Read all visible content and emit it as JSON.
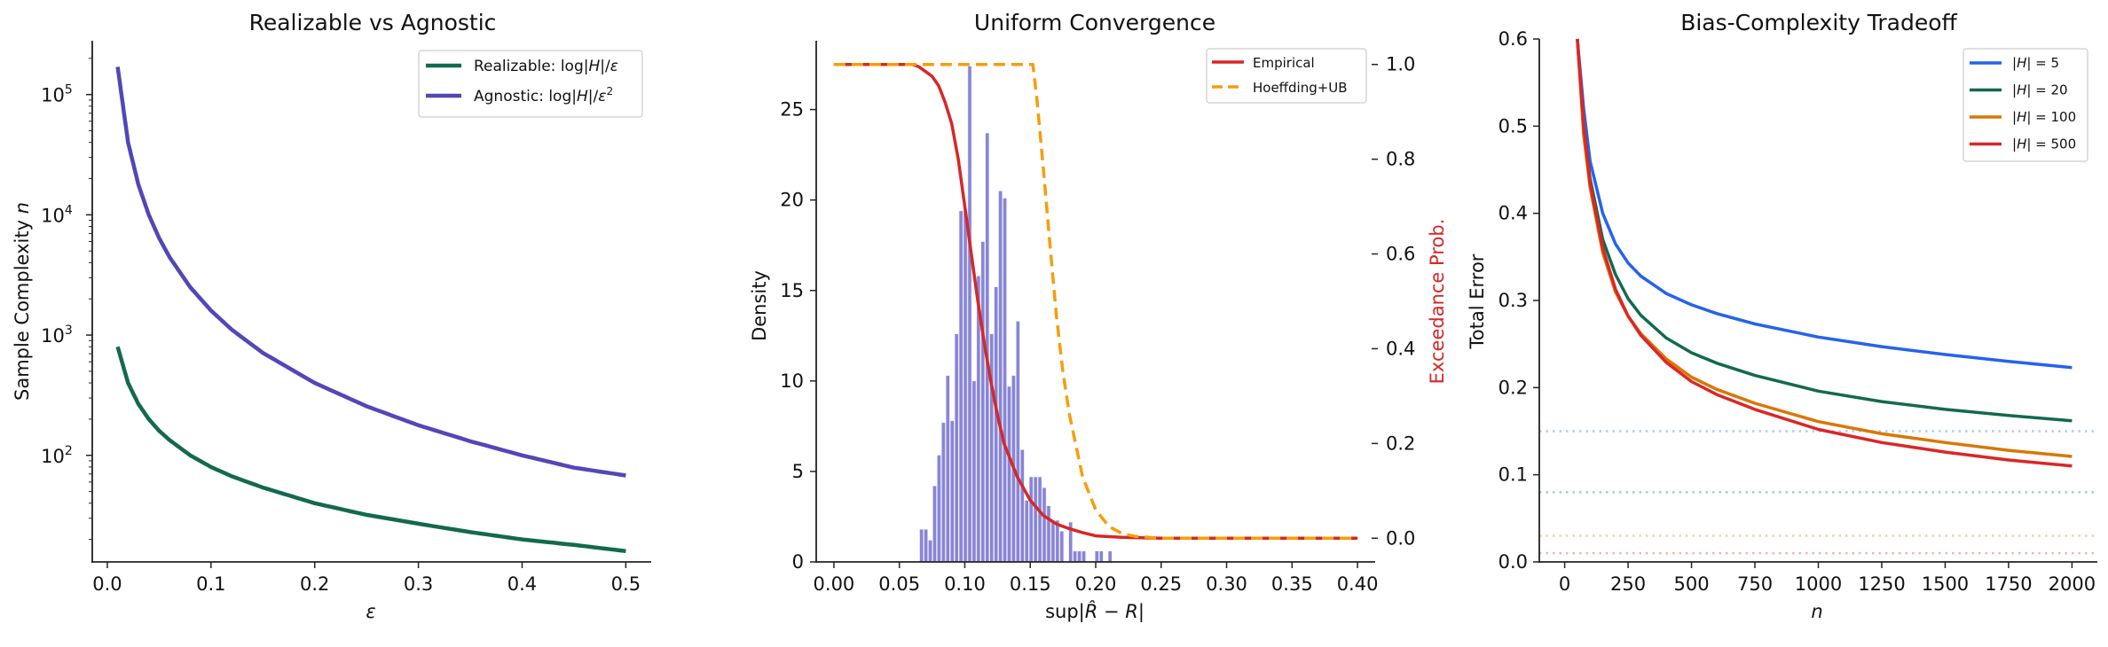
{
  "chart_data": [
    {
      "type": "line",
      "title": "Realizable vs Agnostic",
      "xlabel": "ε",
      "ylabel": "Sample Complexity n",
      "yscale": "log",
      "xlim": [
        -0.0145,
        0.5245
      ],
      "ylim": [
        13,
        280000
      ],
      "xticks": [
        "0.0",
        "0.1",
        "0.2",
        "0.3",
        "0.4",
        "0.5"
      ],
      "yticks": [
        "10^2",
        "10^3",
        "10^4",
        "10^5"
      ],
      "legend_position": "upper right",
      "grid": false,
      "x": [
        0.01,
        0.02,
        0.03,
        0.04,
        0.05,
        0.06,
        0.08,
        0.1,
        0.12,
        0.15,
        0.2,
        0.25,
        0.3,
        0.35,
        0.4,
        0.45,
        0.5
      ],
      "series": [
        {
          "name": "Realizable: log|H|/ε",
          "color": "#13694f",
          "values": [
            800,
            400,
            267,
            200,
            160,
            134,
            100,
            80,
            67,
            54,
            40,
            32,
            27,
            23,
            20,
            18,
            16
          ]
        },
        {
          "name": "Agnostic: log|H|/ε²",
          "color": "#5346b8",
          "values": [
            170000,
            40000,
            17800,
            10000,
            6400,
            4450,
            2500,
            1600,
            1110,
            711,
            400,
            256,
            178,
            131,
            100,
            79,
            68
          ]
        }
      ]
    },
    {
      "type": "bar+line",
      "title": "Uniform Convergence",
      "xlabel": "sup|R̂ − R|",
      "ylabel": "Density",
      "ylabel_right": "Exceedance Prob.",
      "ylabel_right_color": "#d62728",
      "xlim": [
        -0.0135,
        0.4135
      ],
      "ylim": [
        0,
        28.8
      ],
      "ylim_right": [
        -0.05,
        1.05
      ],
      "xticks": [
        "0.00",
        "0.05",
        "0.10",
        "0.15",
        "0.20",
        "0.25",
        "0.30",
        "0.35",
        "0.40"
      ],
      "yticks": [
        "0",
        "5",
        "10",
        "15",
        "20",
        "25"
      ],
      "yticks_right": [
        "0.0",
        "0.2",
        "0.4",
        "0.6",
        "0.8",
        "1.0"
      ],
      "legend_position": "upper right",
      "grid": false,
      "histogram": {
        "color": "#8885d6",
        "bin_start": 0.0655,
        "bin_width": 0.00335,
        "densities": [
          1.8,
          1.8,
          1.2,
          4.2,
          5.9,
          7.7,
          10.3,
          7.8,
          12.6,
          19.4,
          19.4,
          27.4,
          10.0,
          15.8,
          17.7,
          23.7,
          12.6,
          15.2,
          20.5,
          20.1,
          9.7,
          10.3,
          13.3,
          6.2,
          3.4,
          4.7,
          4.7,
          4.7,
          4.1,
          3.1,
          2.3,
          2.3,
          1.7,
          0.0,
          2.2,
          0.6,
          0.6,
          0.6,
          0.0,
          0.0,
          0.6,
          0.6,
          0.0,
          0.6
        ]
      },
      "series": [
        {
          "name": "Empirical",
          "color": "#d62728",
          "style": "solid",
          "x": [
            0.0,
            0.06,
            0.065,
            0.07,
            0.075,
            0.08,
            0.085,
            0.09,
            0.095,
            0.1,
            0.105,
            0.11,
            0.115,
            0.12,
            0.125,
            0.13,
            0.14,
            0.15,
            0.16,
            0.17,
            0.18,
            0.19,
            0.2,
            0.22,
            0.25,
            0.4
          ],
          "values": [
            1.0,
            1.0,
            0.995,
            0.985,
            0.975,
            0.955,
            0.92,
            0.875,
            0.8,
            0.7,
            0.6,
            0.5,
            0.41,
            0.33,
            0.26,
            0.2,
            0.13,
            0.08,
            0.048,
            0.03,
            0.02,
            0.012,
            0.005,
            0.002,
            0.0,
            0.0
          ]
        },
        {
          "name": "Hoeffding+UB",
          "color": "#f59e0b",
          "style": "dashed",
          "x": [
            0.0,
            0.152,
            0.155,
            0.16,
            0.165,
            0.17,
            0.175,
            0.18,
            0.19,
            0.2,
            0.21,
            0.22,
            0.23,
            0.25,
            0.4
          ],
          "values": [
            1.0,
            1.0,
            0.93,
            0.78,
            0.62,
            0.47,
            0.35,
            0.26,
            0.13,
            0.06,
            0.025,
            0.01,
            0.004,
            0.0,
            0.0
          ]
        }
      ]
    },
    {
      "type": "line",
      "title": "Bias-Complexity Tradeoff",
      "xlabel": "n",
      "ylabel": "Total Error",
      "xlim": [
        -100,
        2100
      ],
      "ylim": [
        0.0,
        0.6
      ],
      "xticks": [
        "0",
        "250",
        "500",
        "750",
        "1000",
        "1250",
        "1500",
        "1750",
        "2000"
      ],
      "yticks": [
        "0.0",
        "0.1",
        "0.2",
        "0.3",
        "0.4",
        "0.5",
        "0.6"
      ],
      "legend_position": "upper right",
      "grid": false,
      "x": [
        50,
        75,
        100,
        150,
        200,
        250,
        300,
        400,
        500,
        600,
        750,
        1000,
        1250,
        1500,
        1750,
        2000
      ],
      "series": [
        {
          "name": "|H| = 5",
          "color": "#2563eb",
          "bias": 0.15,
          "values": [
            0.6,
            0.52,
            0.46,
            0.4,
            0.365,
            0.343,
            0.328,
            0.308,
            0.295,
            0.285,
            0.273,
            0.258,
            0.247,
            0.238,
            0.23,
            0.223
          ]
        },
        {
          "name": "|H| = 20",
          "color": "#13694f",
          "bias": 0.08,
          "values": [
            0.6,
            0.5,
            0.44,
            0.37,
            0.33,
            0.302,
            0.283,
            0.257,
            0.24,
            0.228,
            0.214,
            0.196,
            0.184,
            0.175,
            0.168,
            0.162
          ]
        },
        {
          "name": "|H| = 100",
          "color": "#d97706",
          "bias": 0.03,
          "values": [
            0.6,
            0.49,
            0.43,
            0.355,
            0.31,
            0.282,
            0.262,
            0.233,
            0.212,
            0.198,
            0.182,
            0.161,
            0.147,
            0.137,
            0.128,
            0.121
          ]
        },
        {
          "name": "|H| = 500",
          "color": "#dc2626",
          "bias": 0.01,
          "values": [
            0.62,
            0.5,
            0.435,
            0.36,
            0.313,
            0.282,
            0.26,
            0.229,
            0.207,
            0.192,
            0.175,
            0.152,
            0.137,
            0.126,
            0.117,
            0.11
          ]
        }
      ]
    }
  ]
}
